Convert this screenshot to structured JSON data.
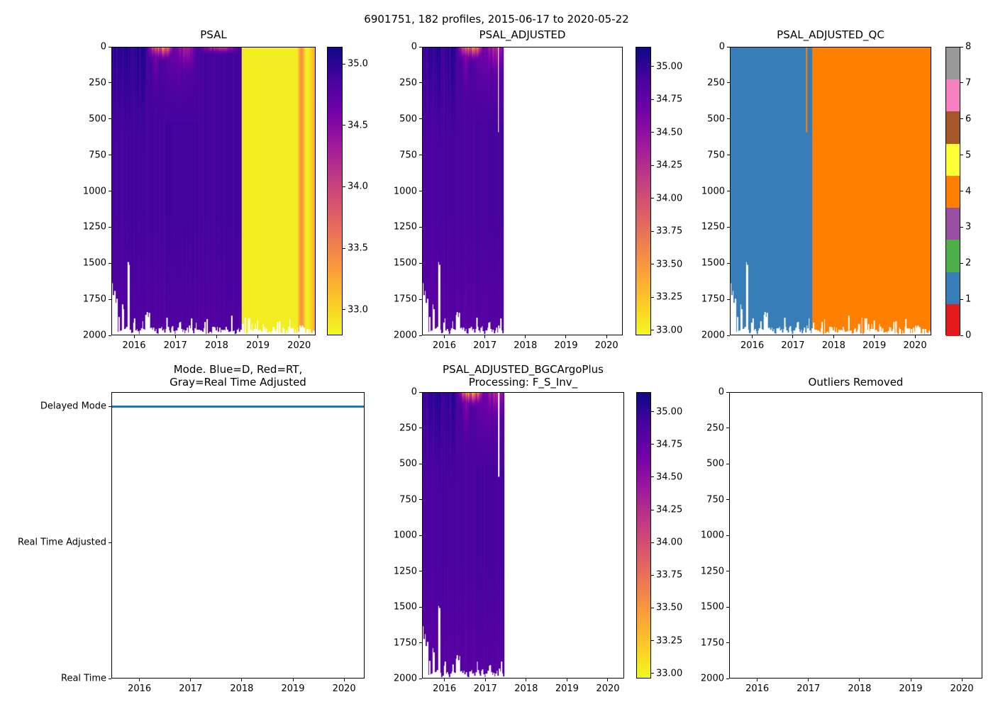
{
  "figure": {
    "suptitle": "6901751, 182 profiles, 2015-06-17 to 2020-05-22",
    "background": "#ffffff",
    "text_color": "#000000"
  },
  "chart_data": {
    "type": "heatmap",
    "description": "Argo float salinity QC dashboard: PSAL pcolormesh (time vs depth), PSAL_ADJUSTED pcolormesh, PSAL_ADJUSTED_QC flag pcolormesh, processing-mode timeline, BGC-adjusted salinity pcolormesh, and an empty Outliers Removed panel.",
    "float_id": "6901751",
    "n_profiles": 182,
    "date_start": "2015-06-17",
    "date_end": "2020-05-22",
    "time_range_decimal": [
      2015.46,
      2020.39
    ],
    "x_axis": {
      "values": [
        2016,
        2017,
        2018,
        2019,
        2020
      ],
      "labels": [
        "2016",
        "2017",
        "2018",
        "2019",
        "2020"
      ],
      "xlim_decimal_years": [
        2015.45,
        2020.4
      ]
    },
    "y_axis": {
      "values": [
        0,
        250,
        500,
        750,
        1000,
        1250,
        1500,
        1750,
        2000
      ],
      "labels": [
        "0",
        "250",
        "500",
        "750",
        "1000",
        "1250",
        "1500",
        "1750",
        "2000"
      ],
      "ylim": [
        0,
        2000
      ]
    },
    "colormap": "plasma reversed (dark indigo = high salinity, yellow = low salinity)",
    "colormap_stops": [
      [
        13,
        8,
        135
      ],
      [
        70,
        3,
        159
      ],
      [
        114,
        1,
        168
      ],
      [
        156,
        23,
        158
      ],
      [
        189,
        55,
        134
      ],
      [
        216,
        87,
        107
      ],
      [
        237,
        121,
        83
      ],
      [
        251,
        159,
        58
      ],
      [
        253,
        202,
        38
      ],
      [
        240,
        249,
        33
      ]
    ],
    "panels": {
      "psal": {
        "title": "PSAL",
        "colorbar": {
          "tick_labels": [
            "35.0",
            "34.5",
            "34.0",
            "33.5",
            "33.0"
          ],
          "tick_values": [
            35.0,
            34.5,
            34.0,
            33.5,
            33.0
          ],
          "vmin": 32.79,
          "vmax": 35.14
        }
      },
      "psal_adjusted": {
        "title": "PSAL_ADJUSTED",
        "colorbar": {
          "tick_labels": [
            "35.00",
            "34.75",
            "34.50",
            "34.25",
            "34.00",
            "33.75",
            "33.50",
            "33.25",
            "33.00"
          ],
          "tick_values": [
            35.0,
            34.75,
            34.5,
            34.25,
            34.0,
            33.75,
            33.5,
            33.25,
            33.0
          ],
          "vmin": 32.96,
          "vmax": 35.15
        }
      },
      "psal_adjusted_qc": {
        "title": "PSAL_ADJUSTED_QC",
        "colorbar": {
          "tick_labels": [
            "8",
            "7",
            "6",
            "5",
            "4",
            "3",
            "2",
            "1",
            "0"
          ],
          "tick_values": [
            8,
            7,
            6,
            5,
            4,
            3,
            2,
            1,
            0
          ],
          "flag_colors_0_to_8": [
            "#e41a1c",
            "#377eb8",
            "#4daf4a",
            "#984ea3",
            "#ff7f00",
            "#ffff33",
            "#a65628",
            "#f781bf",
            "#999999"
          ]
        }
      },
      "mode": {
        "title_line1": "Mode. Blue=D, Red=RT,",
        "title_line2": "Gray=Real Time Adjusted",
        "category_labels": [
          "Delayed Mode",
          "Real Time Adjusted",
          "Real Time"
        ],
        "series_value": "Delayed Mode",
        "line_color": "#1f77b4"
      },
      "psal_adjusted_bgc": {
        "title_line1": "PSAL_ADJUSTED_BGCArgoPlus",
        "title_line2": "Processing: F_S_Inv_",
        "colorbar": {
          "tick_labels": [
            "35.00",
            "34.75",
            "34.50",
            "34.25",
            "34.00",
            "33.75",
            "33.50",
            "33.25",
            "33.00"
          ],
          "tick_values": [
            35.0,
            34.75,
            34.5,
            34.25,
            34.0,
            33.75,
            33.5,
            33.25,
            33.0
          ],
          "vmin": 32.96,
          "vmax": 35.15
        }
      },
      "outliers": {
        "title": "Outliers Removed"
      }
    },
    "features": {
      "seed": 6901751,
      "body_salinity": 34.88,
      "column_salinity_variation": 0.1,
      "deep_lightening": {
        "start_depth": 1150,
        "amount": 0.08
      },
      "early_dark_period": {
        "t_end": 2016.27,
        "max_extra": 0.27,
        "max_depth": 700
      },
      "surface_anomalies": [
        {
          "t0": 2016.3,
          "t1": 2016.98,
          "depth": 115,
          "min_value": 33.05
        },
        {
          "t0": 2016.42,
          "t1": 2016.62,
          "depth": 430,
          "min_value": 34.3
        },
        {
          "t0": 2016.6,
          "t1": 2017.55,
          "depth": 520,
          "min_value": 34.55
        },
        {
          "t0": 2016.98,
          "t1": 2017.52,
          "depth": 280,
          "min_value": 34.1
        },
        {
          "t0": 2017.55,
          "t1": 2018.6,
          "depth": 55,
          "min_value": 33.9
        }
      ],
      "bottom": {
        "base": 1945,
        "jitter": 50,
        "spike_prob": 0.18,
        "spike_extra": 70,
        "shallow_events": [
          {
            "t": 2015.505,
            "halfwidth": 0.075,
            "depth": 1560,
            "spread": 300
          },
          {
            "t": 2015.72,
            "halfwidth": 0.025,
            "depth": 1780,
            "spread": 170
          },
          {
            "t": 2015.8,
            "halfwidth": 0.011,
            "depth": 1030,
            "spread": 30
          },
          {
            "t": 2015.85,
            "halfwidth": 0.035,
            "depth": 1460,
            "spread": 200
          },
          {
            "t": 2016.33,
            "halfwidth": 0.055,
            "depth": 1690,
            "spread": 220
          }
        ]
      },
      "adjusted_data_end": 2017.47,
      "adjusted_gap": {
        "t": 2017.33,
        "max_depth": 590
      },
      "raw_bad": {
        "t_start": 2018.62,
        "value": 32.85,
        "orange_band": {
          "t0": 2019.97,
          "t1": 2020.17,
          "peak_value": 33.38
        },
        "right_edge_tint": {
          "t0": 2020.25,
          "end_value": 33.25
        }
      },
      "qc": {
        "flag_boundary_t": 2017.47,
        "flag_before": 1,
        "flag_after": 4,
        "gap_flag": 4
      }
    }
  }
}
